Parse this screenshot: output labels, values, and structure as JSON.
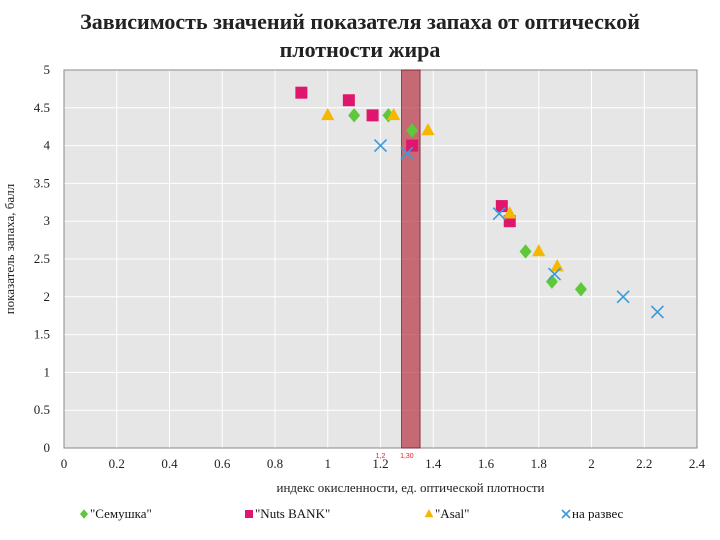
{
  "chart_data": {
    "type": "scatter",
    "title": "Зависимость значений показателя запаха от оптической плотности жира",
    "xlabel": "индекс окисленности, ед. оптической плотности",
    "ylabel": "показатель запаха, балл",
    "xlim": [
      0,
      2.4
    ],
    "ylim": [
      0,
      5
    ],
    "x_ticks": [
      "0",
      "0.2",
      "0.4",
      "0.6",
      "0.8",
      "1",
      "1.2",
      "1.4",
      "1.6",
      "1.8",
      "2",
      "2.2",
      "2.4"
    ],
    "y_ticks": [
      "0",
      "0.5",
      "1",
      "1.5",
      "2",
      "2.5",
      "3",
      "3.5",
      "4",
      "4.5",
      "5"
    ],
    "grid": true,
    "legend_position": "bottom",
    "highlight_band": {
      "x_from": 1.28,
      "x_to": 1.35,
      "color": "#b83a4a"
    },
    "annotations": [
      {
        "text": "1,2",
        "x": 1.2
      },
      {
        "text": "1,30",
        "x": 1.3
      }
    ],
    "series": [
      {
        "name": "\"Семушка\"",
        "marker": "diamond",
        "color": "#5fc83a",
        "points": [
          [
            1.1,
            4.4
          ],
          [
            1.23,
            4.4
          ],
          [
            1.32,
            4.2
          ],
          [
            1.75,
            2.6
          ],
          [
            1.85,
            2.2
          ],
          [
            1.96,
            2.1
          ]
        ]
      },
      {
        "name": "\"Nuts BANK\"",
        "marker": "square",
        "color": "#e0166e",
        "points": [
          [
            0.9,
            4.7
          ],
          [
            1.08,
            4.6
          ],
          [
            1.17,
            4.4
          ],
          [
            1.32,
            4.0
          ],
          [
            1.66,
            3.2
          ],
          [
            1.69,
            3.0
          ]
        ]
      },
      {
        "name": "\"Asal\"",
        "marker": "triangle",
        "color": "#f5b800",
        "points": [
          [
            1.0,
            4.4
          ],
          [
            1.25,
            4.4
          ],
          [
            1.38,
            4.2
          ],
          [
            1.69,
            3.1
          ],
          [
            1.8,
            2.6
          ],
          [
            1.87,
            2.4
          ]
        ]
      },
      {
        "name": "на развес",
        "marker": "cross",
        "color": "#3a9bd8",
        "points": [
          [
            1.2,
            4.0
          ],
          [
            1.3,
            3.9
          ],
          [
            1.65,
            3.1
          ],
          [
            1.86,
            2.3
          ],
          [
            2.12,
            2.0
          ],
          [
            2.25,
            1.8
          ]
        ]
      }
    ]
  }
}
